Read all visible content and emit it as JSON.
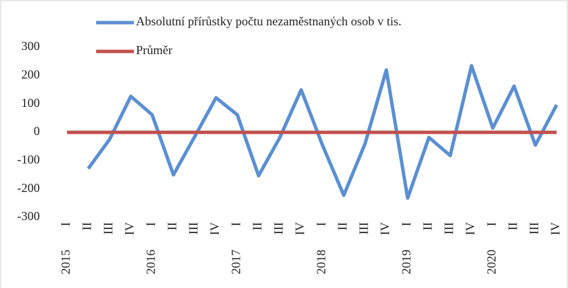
{
  "chart_data": {
    "type": "line",
    "categories": [
      "I",
      "II",
      "III",
      "IV",
      "I",
      "II",
      "III",
      "IV",
      "I",
      "II",
      "III",
      "IV",
      "I",
      "II",
      "III",
      "IV",
      "I",
      "II",
      "III",
      "IV",
      "I",
      "II",
      "III",
      "IV"
    ],
    "year_categories": [
      "2015",
      null,
      null,
      null,
      "2016",
      null,
      null,
      null,
      "2017",
      null,
      null,
      null,
      "2018",
      null,
      null,
      null,
      "2019",
      null,
      null,
      null,
      "2020",
      null,
      null,
      null
    ],
    "series": [
      {
        "name": "Absolutní přírůstky počtu nezaměstnaných osob v tis.",
        "color": "#5b8fd0",
        "values": [
          null,
          -128,
          -25,
          127,
          62,
          -150,
          -15,
          122,
          62,
          -153,
          -18,
          150,
          -45,
          -222,
          -40,
          220,
          -232,
          -18,
          -82,
          235,
          15,
          163,
          -45,
          97
        ]
      },
      {
        "name": "Průměr",
        "color": "#c0504d",
        "values": [
          0,
          0,
          0,
          0,
          0,
          0,
          0,
          0,
          0,
          0,
          0,
          0,
          0,
          0,
          0,
          0,
          0,
          0,
          0,
          0,
          0,
          0,
          0,
          0
        ]
      }
    ],
    "ylim": [
      -300,
      300
    ],
    "yticks": [
      -300,
      -200,
      -100,
      0,
      100,
      200,
      300
    ],
    "grid": false
  }
}
